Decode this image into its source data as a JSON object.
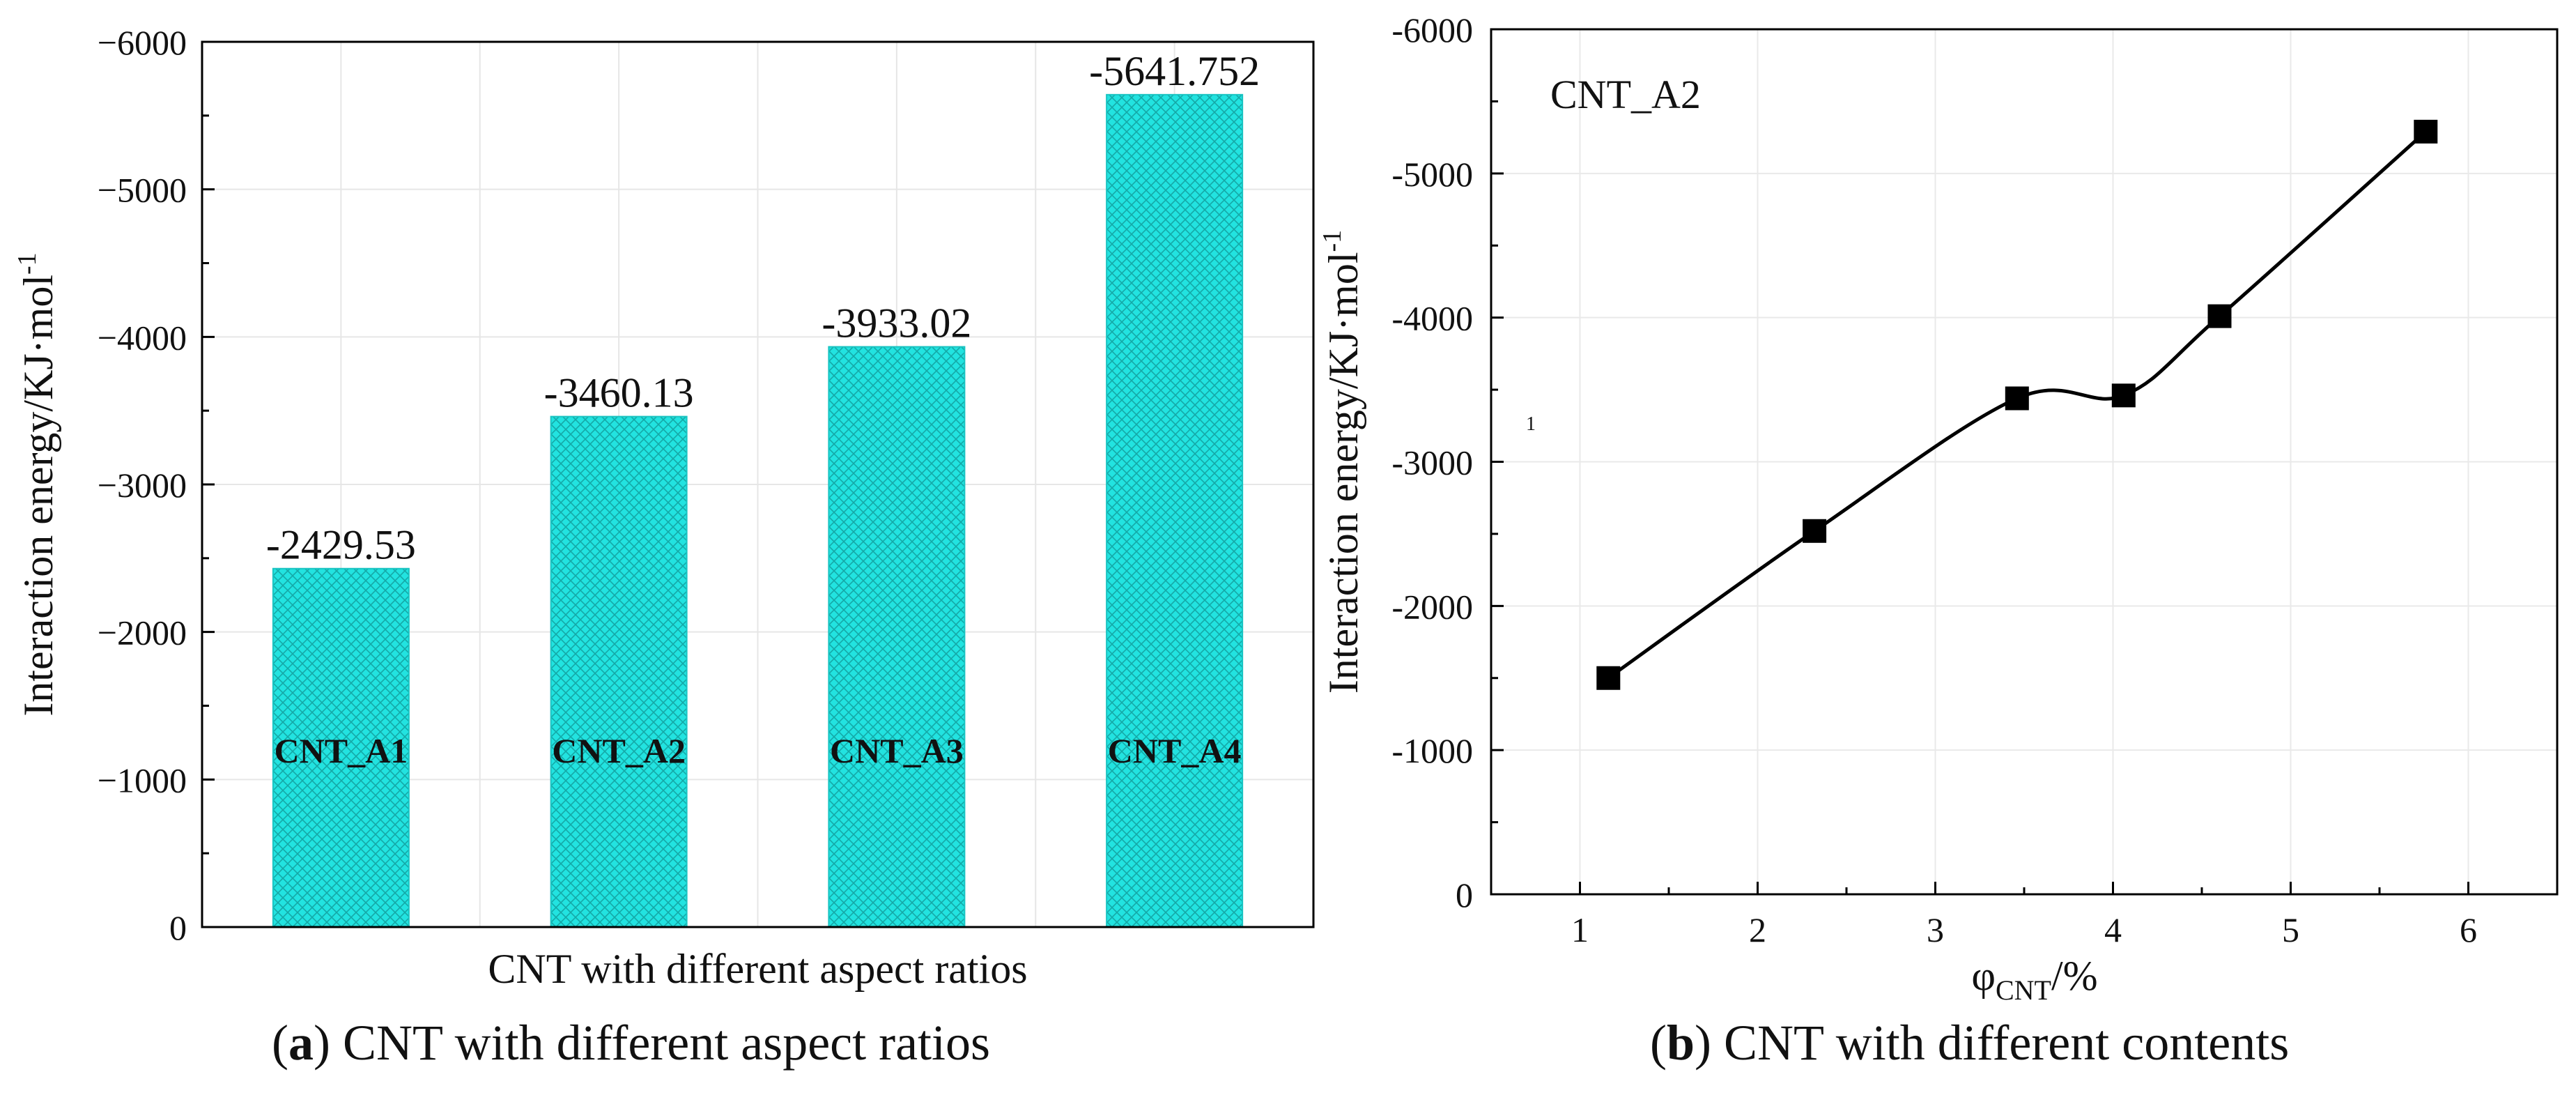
{
  "chart_data": [
    {
      "id": "a",
      "type": "bar",
      "title": "",
      "xlabel": "CNT with different aspect ratios",
      "ylabel": "Interaction energy/KJ·mol",
      "ylabel_superscript": "-1",
      "ylim": [
        0,
        -6000
      ],
      "yticks": [
        0,
        -1000,
        -2000,
        -3000,
        -4000,
        -5000,
        -6000
      ],
      "ytick_labels": [
        "0",
        "−1000",
        "−2000",
        "−3000",
        "−4000",
        "−5000",
        "−6000"
      ],
      "categories": [
        "CNT_A1",
        "CNT_A2",
        "CNT_A3",
        "CNT_A4"
      ],
      "values": [
        -2429.53,
        -3460.13,
        -3933.02,
        -5641.752
      ],
      "data_labels": [
        "-2429.53",
        "-3460.13",
        "-3933.02",
        "-5641.752"
      ],
      "grid": true,
      "color": "#22e3e0"
    },
    {
      "id": "b",
      "type": "line",
      "title": "",
      "annotation": "CNT_A2",
      "stray_mark": "1",
      "xlabel": "φ",
      "xlabel_subscript": "CNT",
      "xlabel_suffix": "/%",
      "ylabel": "Interaction energy/KJ·mol",
      "ylabel_superscript": "-1",
      "xlim": [
        0.5,
        6.5
      ],
      "ylim": [
        0,
        -6000
      ],
      "xticks": [
        1,
        2,
        3,
        4,
        5,
        6
      ],
      "xtick_labels": [
        "1",
        "2",
        "3",
        "4",
        "5",
        "6"
      ],
      "yticks": [
        0,
        -1000,
        -2000,
        -3000,
        -4000,
        -5000,
        -6000
      ],
      "ytick_labels": [
        "0",
        "−1000",
        "−2000",
        "−3000",
        "−4000",
        "−5000",
        "−6000"
      ],
      "x": [
        1.16,
        2.32,
        3.46,
        4.06,
        4.6,
        5.76
      ],
      "y": [
        -1500,
        -2520,
        -3440,
        -3460,
        -4010,
        -5290
      ],
      "grid": true,
      "color": "#000000"
    }
  ],
  "captions": {
    "a_letter": "a",
    "a_text": "CNT with different aspect ratios",
    "b_letter": "b",
    "b_text": "CNT with different contents"
  }
}
